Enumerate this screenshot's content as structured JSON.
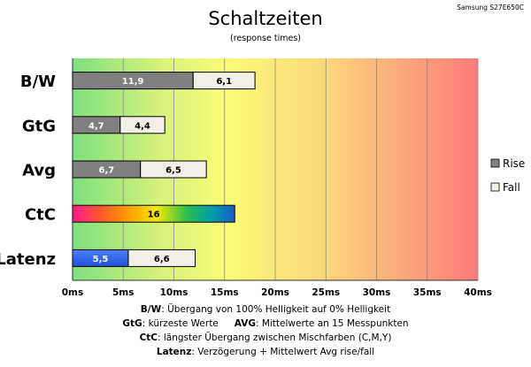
{
  "chart_data": {
    "type": "bar",
    "title": "Schaltzeiten",
    "subtitle": "(response times)",
    "source": "Samsung S27E650C",
    "xlabel": "",
    "ylabel": "",
    "xlim": [
      0,
      40
    ],
    "x_ticks": [
      "0ms",
      "5ms",
      "10ms",
      "15ms",
      "20ms",
      "25ms",
      "30ms",
      "35ms",
      "40ms"
    ],
    "categories": [
      "B/W",
      "GtG",
      "Avg",
      "CtC",
      "Latenz"
    ],
    "series": [
      {
        "name": "Rise",
        "color": "#808080",
        "values": [
          11.9,
          4.7,
          6.7,
          null,
          null
        ],
        "labels": [
          "11,9",
          "4,7",
          "6,7",
          "",
          ""
        ]
      },
      {
        "name": "Fall",
        "color": "#f2f0e6",
        "values": [
          6.1,
          4.4,
          6.5,
          null,
          6.6
        ],
        "labels": [
          "6,1",
          "4,4",
          "6,5",
          "",
          "6,6"
        ]
      }
    ],
    "special_bars": [
      {
        "category": "CtC",
        "value": 16,
        "label": "16",
        "fill": "rainbow"
      },
      {
        "category": "Latenz",
        "value": 5.5,
        "label": "5,5",
        "fill": "#3366ee"
      }
    ],
    "legend": {
      "placement": "right",
      "entries": [
        "Rise",
        "Fall"
      ]
    },
    "grid": true,
    "background": "gradient green-yellow-red"
  },
  "notes": [
    {
      "key": "B/W",
      "text": ":  Übergang von 100% Helligkeit auf 0% Helligkeit"
    },
    {
      "key": "GtG",
      "text": ": kürzeste  Werte",
      "key2": "AVG",
      "text2": ": Mittelwerte  an 15 Messpunkten"
    },
    {
      "key": "CtC",
      "text": ": längster Übergang  zwischen Mischfarben (C,M,Y)"
    },
    {
      "key": "Latenz",
      "text": ": Verzögerung  + Mittelwert Avg rise/fall"
    }
  ]
}
